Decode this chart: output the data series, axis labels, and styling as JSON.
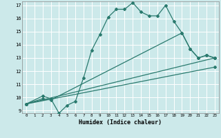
{
  "xlabel": "Humidex (Indice chaleur)",
  "xlim": [
    0,
    23
  ],
  "ylim": [
    9,
    17
  ],
  "yticks": [
    9,
    10,
    11,
    12,
    13,
    14,
    15,
    16,
    17
  ],
  "xticks": [
    0,
    1,
    2,
    3,
    4,
    5,
    6,
    7,
    8,
    9,
    10,
    11,
    12,
    13,
    14,
    15,
    16,
    17,
    18,
    19,
    20,
    21,
    22,
    23
  ],
  "bg_color": "#cce9ea",
  "grid_color": "#b0d8da",
  "line_color": "#2a7a6e",
  "series1_x": [
    0,
    2,
    3,
    4,
    5,
    6,
    7,
    8,
    9,
    10,
    11,
    12,
    13,
    14,
    15,
    16,
    17,
    18,
    19,
    20,
    21,
    22,
    23
  ],
  "series1_y": [
    9.5,
    10.1,
    9.9,
    8.8,
    9.4,
    9.7,
    11.5,
    13.6,
    14.8,
    16.1,
    16.7,
    16.7,
    17.2,
    16.5,
    16.2,
    16.2,
    17.0,
    15.8,
    14.9,
    13.7,
    13.0,
    13.2,
    13.0
  ],
  "series2_x": [
    0,
    2,
    3,
    19,
    20,
    21,
    22,
    23
  ],
  "series2_y": [
    9.5,
    9.9,
    9.8,
    14.9,
    13.7,
    13.0,
    13.2,
    13.0
  ],
  "series3_x": [
    0,
    23
  ],
  "series3_y": [
    9.5,
    13.0
  ],
  "series4_x": [
    0,
    23
  ],
  "series4_y": [
    9.5,
    12.3
  ]
}
